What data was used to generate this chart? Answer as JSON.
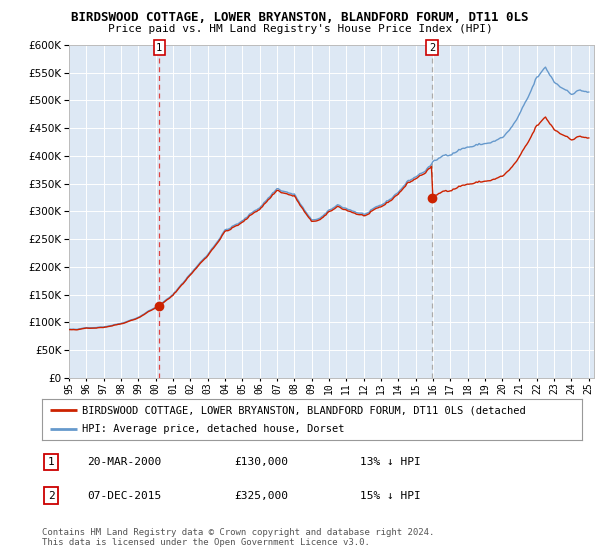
{
  "title": "BIRDSWOOD COTTAGE, LOWER BRYANSTON, BLANDFORD FORUM, DT11 0LS",
  "subtitle": "Price paid vs. HM Land Registry's House Price Index (HPI)",
  "ylim": [
    0,
    600000
  ],
  "yticks": [
    0,
    50000,
    100000,
    150000,
    200000,
    250000,
    300000,
    350000,
    400000,
    450000,
    500000,
    550000,
    600000
  ],
  "hpi_color": "#6699cc",
  "price_color": "#cc2200",
  "dashed_line1_color": "#dd4444",
  "dashed_line2_color": "#aaaaaa",
  "plot_bg_color": "#dde8f4",
  "annotation1": [
    "1",
    "20-MAR-2000",
    "£130,000",
    "13% ↓ HPI"
  ],
  "annotation2": [
    "2",
    "07-DEC-2015",
    "£325,000",
    "15% ↓ HPI"
  ],
  "legend_line1": "BIRDSWOOD COTTAGE, LOWER BRYANSTON, BLANDFORD FORUM, DT11 0LS (detached",
  "legend_line2": "HPI: Average price, detached house, Dorset",
  "footer": "Contains HM Land Registry data © Crown copyright and database right 2024.\nThis data is licensed under the Open Government Licence v3.0.",
  "background_color": "#ffffff"
}
